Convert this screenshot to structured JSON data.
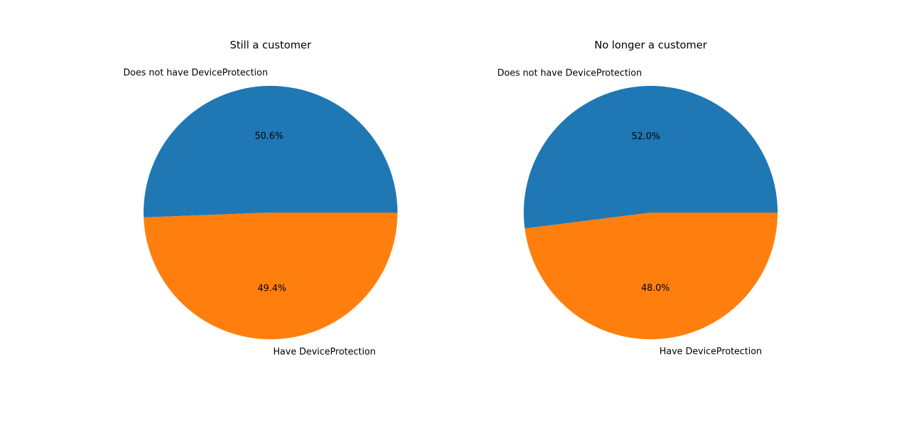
{
  "chart_data": [
    {
      "type": "pie",
      "title": "Still a customer",
      "labels": [
        "Does not have DeviceProtection",
        "Have DeviceProtection"
      ],
      "values": [
        50.6,
        49.4
      ],
      "value_labels": [
        "50.6%",
        "49.4%"
      ],
      "colors": [
        "#1f77b4",
        "#ff7f0e"
      ],
      "start_angle": 0,
      "direction": "counterclockwise",
      "legend": "none"
    },
    {
      "type": "pie",
      "title": "No longer a customer",
      "labels": [
        "Does not have DeviceProtection",
        "Have DeviceProtection"
      ],
      "values": [
        52.0,
        48.0
      ],
      "value_labels": [
        "52.0%",
        "48.0%"
      ],
      "colors": [
        "#1f77b4",
        "#ff7f0e"
      ],
      "start_angle": 0,
      "direction": "counterclockwise",
      "legend": "none"
    }
  ]
}
